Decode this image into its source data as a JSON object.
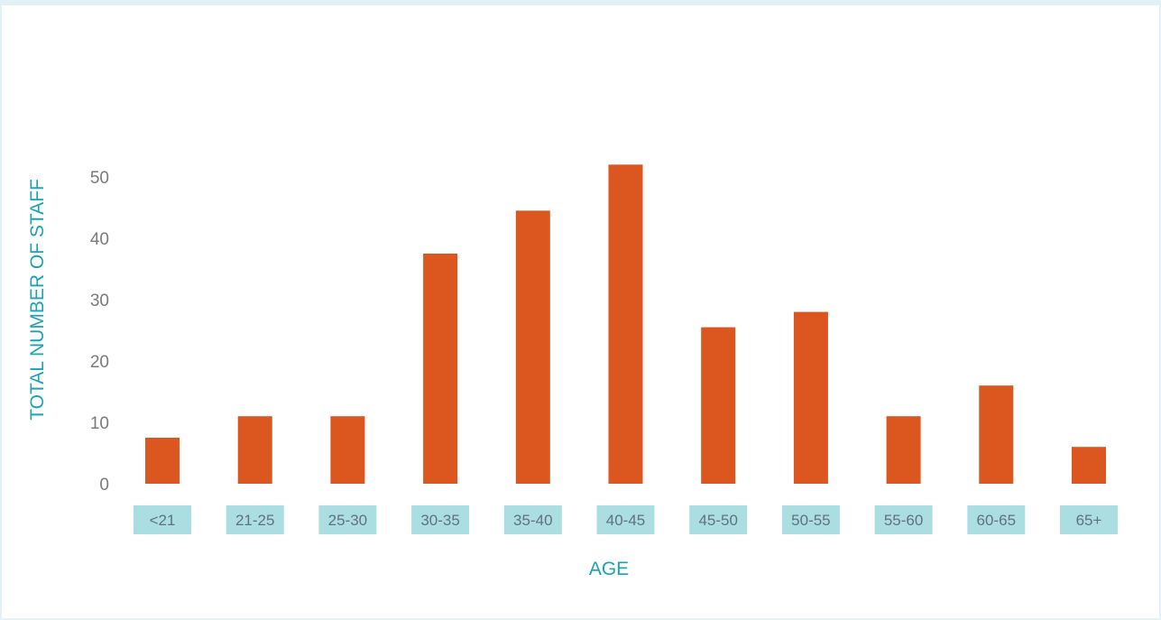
{
  "chart_data": {
    "type": "bar",
    "categories": [
      "<21",
      "21-25",
      "25-30",
      "30-35",
      "35-40",
      "40-45",
      "45-50",
      "50-55",
      "55-60",
      "60-65",
      "65+"
    ],
    "values": [
      7.5,
      11,
      11,
      37.5,
      44.5,
      52,
      25.5,
      28,
      11,
      16,
      6
    ],
    "xlabel": "AGE",
    "ylabel": "TOTAL NUMBER OF STAFF",
    "yticks": [
      0,
      10,
      20,
      30,
      40,
      50
    ],
    "ylim": [
      0,
      52
    ],
    "grid": false,
    "colors": {
      "bar": "#dc5620",
      "category_box": "#abdee0",
      "axis_title": "#1aa2b5",
      "border": "#e1f1f5"
    }
  }
}
